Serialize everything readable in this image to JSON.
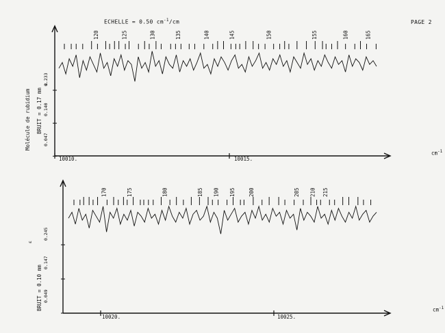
{
  "header": {
    "scale_label": "ECHELLE = 0.50 cm",
    "scale_exp": "-1",
    "scale_suffix": "/cm",
    "page_label": "PAGE 2"
  },
  "colors": {
    "ink": "#111111",
    "paper": "#f4f4f2"
  },
  "chart_data": [
    {
      "type": "line",
      "title": "",
      "xlabel": "cm",
      "xlabel_exp": "-1",
      "side_title": "Molécule de rubidium",
      "noise_label": "BRUIT = 0.17 mm",
      "y_ticks": [
        "0.047",
        "0.140",
        "0.233"
      ],
      "y_unit": "ε",
      "x_ticks": [
        "10010.",
        "10015."
      ],
      "x_range": [
        10009.9,
        10021.1
      ],
      "line_numbers": [
        "120",
        "125",
        "130",
        "135",
        "140",
        "145",
        "150",
        "155",
        "160",
        "165"
      ],
      "line_number_positions": [
        10011.2,
        10012.2,
        10013.2,
        10014.1,
        10015.1,
        10016.0,
        10017.3,
        10018.9,
        10020.0,
        10020.8
      ],
      "series": [
        {
          "values": [
            0.18,
            0.21,
            0.15,
            0.23,
            0.19,
            0.25,
            0.13,
            0.22,
            0.17,
            0.24,
            0.2,
            0.16,
            0.26,
            0.18,
            0.21,
            0.14,
            0.23,
            0.19,
            0.25,
            0.17,
            0.22,
            0.2,
            0.11,
            0.24,
            0.18,
            0.21,
            0.16,
            0.27,
            0.19,
            0.22,
            0.15,
            0.24,
            0.2,
            0.18,
            0.25,
            0.16,
            0.22,
            0.19,
            0.23,
            0.17,
            0.21,
            0.26,
            0.18,
            0.2,
            0.15,
            0.23,
            0.19,
            0.24,
            0.21,
            0.17,
            0.22,
            0.25,
            0.18,
            0.2,
            0.16,
            0.24,
            0.19,
            0.22,
            0.26,
            0.18,
            0.21,
            0.17,
            0.23,
            0.2,
            0.25,
            0.19,
            0.22,
            0.16,
            0.24,
            0.21,
            0.18,
            0.26,
            0.2,
            0.23,
            0.17,
            0.22,
            0.19,
            0.25,
            0.21,
            0.18,
            0.24,
            0.2,
            0.22,
            0.16,
            0.25,
            0.19,
            0.23,
            0.21,
            0.17,
            0.24,
            0.2,
            0.22,
            0.19
          ]
        }
      ]
    },
    {
      "type": "line",
      "title": "",
      "xlabel": "cm",
      "xlabel_exp": "-1",
      "noise_label": "BRUIT = 0.10 mm",
      "y_ticks": [
        "0.049",
        "0.147",
        "0.245"
      ],
      "y_unit": "ε",
      "x_ticks": [
        "10020.",
        "10025."
      ],
      "x_range": [
        10018.9,
        10028.5
      ],
      "line_numbers": [
        "170",
        "175",
        "180",
        "185",
        "190",
        "195",
        "200",
        "205",
        "210",
        "215"
      ],
      "line_number_positions": [
        10020.0,
        10020.8,
        10021.9,
        10023.0,
        10023.5,
        10024.0,
        10024.6,
        10026.0,
        10026.5,
        10026.9
      ],
      "series": [
        {
          "values": [
            0.2,
            0.23,
            0.17,
            0.25,
            0.19,
            0.22,
            0.15,
            0.24,
            0.21,
            0.18,
            0.26,
            0.13,
            0.23,
            0.2,
            0.25,
            0.17,
            0.22,
            0.19,
            0.24,
            0.16,
            0.23,
            0.21,
            0.18,
            0.25,
            0.2,
            0.22,
            0.17,
            0.24,
            0.19,
            0.26,
            0.21,
            0.18,
            0.23,
            0.2,
            0.25,
            0.17,
            0.22,
            0.24,
            0.19,
            0.21,
            0.26,
            0.18,
            0.23,
            0.2,
            0.12,
            0.24,
            0.19,
            0.22,
            0.25,
            0.18,
            0.21,
            0.23,
            0.17,
            0.24,
            0.2,
            0.26,
            0.19,
            0.22,
            0.18,
            0.25,
            0.21,
            0.23,
            0.17,
            0.24,
            0.2,
            0.22,
            0.14,
            0.25,
            0.19,
            0.23,
            0.21,
            0.18,
            0.26,
            0.2,
            0.22,
            0.17,
            0.24,
            0.19,
            0.25,
            0.21,
            0.18,
            0.23,
            0.2,
            0.26,
            0.19,
            0.22,
            0.24,
            0.18,
            0.21,
            0.23
          ]
        }
      ]
    }
  ]
}
